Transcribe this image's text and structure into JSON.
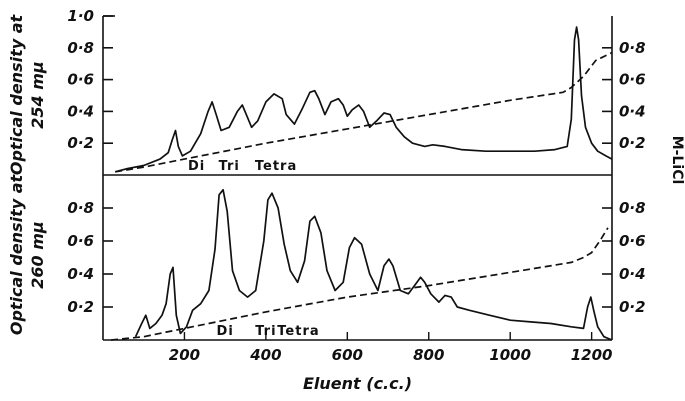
{
  "chart_data": [
    {
      "type": "line",
      "panel": "top",
      "ylabel_lines": [
        "Optical density at",
        "254 mμ"
      ],
      "y2label": "M-LiCl",
      "xlim": [
        0,
        1250
      ],
      "ylim": [
        0,
        1.0
      ],
      "y2lim": [
        0,
        1.0
      ],
      "left_ticks": [
        {
          "v": 1.0,
          "label": "1·0"
        },
        {
          "v": 0.8,
          "label": "0·8"
        },
        {
          "v": 0.6,
          "label": "0·6"
        },
        {
          "v": 0.4,
          "label": "0·4"
        },
        {
          "v": 0.2,
          "label": "0·2"
        }
      ],
      "right_ticks": [
        {
          "v": 0.8,
          "label": "0·8"
        },
        {
          "v": 0.6,
          "label": "0·6"
        },
        {
          "v": 0.4,
          "label": "0·4"
        },
        {
          "v": 0.2,
          "label": "0·2"
        }
      ],
      "fraction_labels": [
        {
          "x": 230,
          "label": "Di"
        },
        {
          "x": 310,
          "label": "Tri"
        },
        {
          "x": 425,
          "label": "Tetra"
        }
      ],
      "series": [
        {
          "style": "solid",
          "x": [
            30,
            60,
            100,
            140,
            160,
            170,
            178,
            185,
            195,
            215,
            240,
            258,
            268,
            278,
            290,
            310,
            330,
            342,
            352,
            365,
            380,
            400,
            420,
            440,
            450,
            470,
            490,
            508,
            520,
            530,
            545,
            560,
            578,
            590,
            600,
            612,
            628,
            640,
            655,
            672,
            690,
            705,
            720,
            740,
            760,
            790,
            810,
            840,
            880,
            940,
            1000,
            1060,
            1110,
            1140,
            1150,
            1158,
            1163,
            1168,
            1175,
            1185,
            1200,
            1215,
            1235,
            1250
          ],
          "y": [
            0.02,
            0.04,
            0.06,
            0.1,
            0.14,
            0.22,
            0.28,
            0.18,
            0.12,
            0.15,
            0.26,
            0.4,
            0.46,
            0.38,
            0.28,
            0.3,
            0.4,
            0.44,
            0.38,
            0.3,
            0.34,
            0.46,
            0.51,
            0.48,
            0.38,
            0.32,
            0.42,
            0.52,
            0.53,
            0.48,
            0.38,
            0.46,
            0.48,
            0.44,
            0.37,
            0.41,
            0.44,
            0.4,
            0.3,
            0.34,
            0.39,
            0.38,
            0.3,
            0.24,
            0.2,
            0.18,
            0.19,
            0.18,
            0.16,
            0.15,
            0.15,
            0.15,
            0.16,
            0.18,
            0.35,
            0.85,
            0.93,
            0.85,
            0.5,
            0.3,
            0.2,
            0.15,
            0.12,
            0.1
          ]
        },
        {
          "style": "dashed",
          "x": [
            30,
            100,
            200,
            400,
            600,
            800,
            1000,
            1130,
            1150,
            1180,
            1210,
            1250
          ],
          "y": [
            0.02,
            0.05,
            0.1,
            0.2,
            0.29,
            0.38,
            0.47,
            0.52,
            0.55,
            0.62,
            0.72,
            0.77
          ]
        }
      ]
    },
    {
      "type": "line",
      "panel": "bottom",
      "ylabel_lines": [
        "Optical density at",
        "260 mμ"
      ],
      "y2label": "M-LiCl",
      "xlabel": "Eluent (c.c.)",
      "xlim": [
        0,
        1250
      ],
      "ylim": [
        0,
        1.0
      ],
      "y2lim": [
        0,
        1.0
      ],
      "x_ticks": [
        {
          "v": 200,
          "label": "200"
        },
        {
          "v": 400,
          "label": "400"
        },
        {
          "v": 600,
          "label": "600"
        },
        {
          "v": 800,
          "label": "800"
        },
        {
          "v": 1000,
          "label": "1000"
        },
        {
          "v": 1200,
          "label": "1200"
        }
      ],
      "left_ticks": [
        {
          "v": 0.8,
          "label": "0·8"
        },
        {
          "v": 0.6,
          "label": "0·6"
        },
        {
          "v": 0.4,
          "label": "0·4"
        },
        {
          "v": 0.2,
          "label": "0·2"
        }
      ],
      "right_ticks": [
        {
          "v": 0.8,
          "label": "0·8"
        },
        {
          "v": 0.6,
          "label": "0·6"
        },
        {
          "v": 0.4,
          "label": "0·4"
        },
        {
          "v": 0.2,
          "label": "0·2"
        }
      ],
      "fraction_labels": [
        {
          "x": 300,
          "label": "Di"
        },
        {
          "x": 400,
          "label": "Tri"
        },
        {
          "x": 480,
          "label": "Tetra"
        }
      ],
      "series": [
        {
          "style": "solid",
          "x": [
            80,
            95,
            105,
            115,
            130,
            145,
            155,
            165,
            172,
            180,
            190,
            205,
            220,
            240,
            260,
            275,
            285,
            295,
            305,
            318,
            335,
            355,
            375,
            395,
            405,
            415,
            430,
            445,
            460,
            478,
            495,
            508,
            520,
            535,
            550,
            570,
            590,
            605,
            618,
            635,
            655,
            675,
            690,
            702,
            712,
            730,
            750,
            765,
            780,
            790,
            805,
            825,
            840,
            855,
            870,
            900,
            950,
            1000,
            1050,
            1100,
            1150,
            1180,
            1190,
            1198,
            1205,
            1215,
            1230,
            1250
          ],
          "y": [
            0.02,
            0.1,
            0.15,
            0.07,
            0.1,
            0.15,
            0.22,
            0.4,
            0.44,
            0.15,
            0.04,
            0.08,
            0.18,
            0.22,
            0.3,
            0.55,
            0.88,
            0.91,
            0.78,
            0.42,
            0.3,
            0.26,
            0.3,
            0.6,
            0.85,
            0.89,
            0.8,
            0.58,
            0.42,
            0.35,
            0.48,
            0.72,
            0.75,
            0.65,
            0.42,
            0.3,
            0.35,
            0.56,
            0.62,
            0.58,
            0.4,
            0.3,
            0.45,
            0.49,
            0.45,
            0.3,
            0.28,
            0.33,
            0.38,
            0.35,
            0.28,
            0.23,
            0.27,
            0.26,
            0.2,
            0.18,
            0.15,
            0.12,
            0.11,
            0.1,
            0.08,
            0.07,
            0.2,
            0.26,
            0.18,
            0.08,
            0.02,
            0.0
          ]
        },
        {
          "style": "dashed",
          "x": [
            20,
            100,
            200,
            400,
            600,
            800,
            1000,
            1150,
            1180,
            1200,
            1220,
            1240
          ],
          "y": [
            0.0,
            0.02,
            0.07,
            0.17,
            0.26,
            0.33,
            0.41,
            0.47,
            0.5,
            0.53,
            0.6,
            0.68
          ]
        }
      ]
    }
  ]
}
